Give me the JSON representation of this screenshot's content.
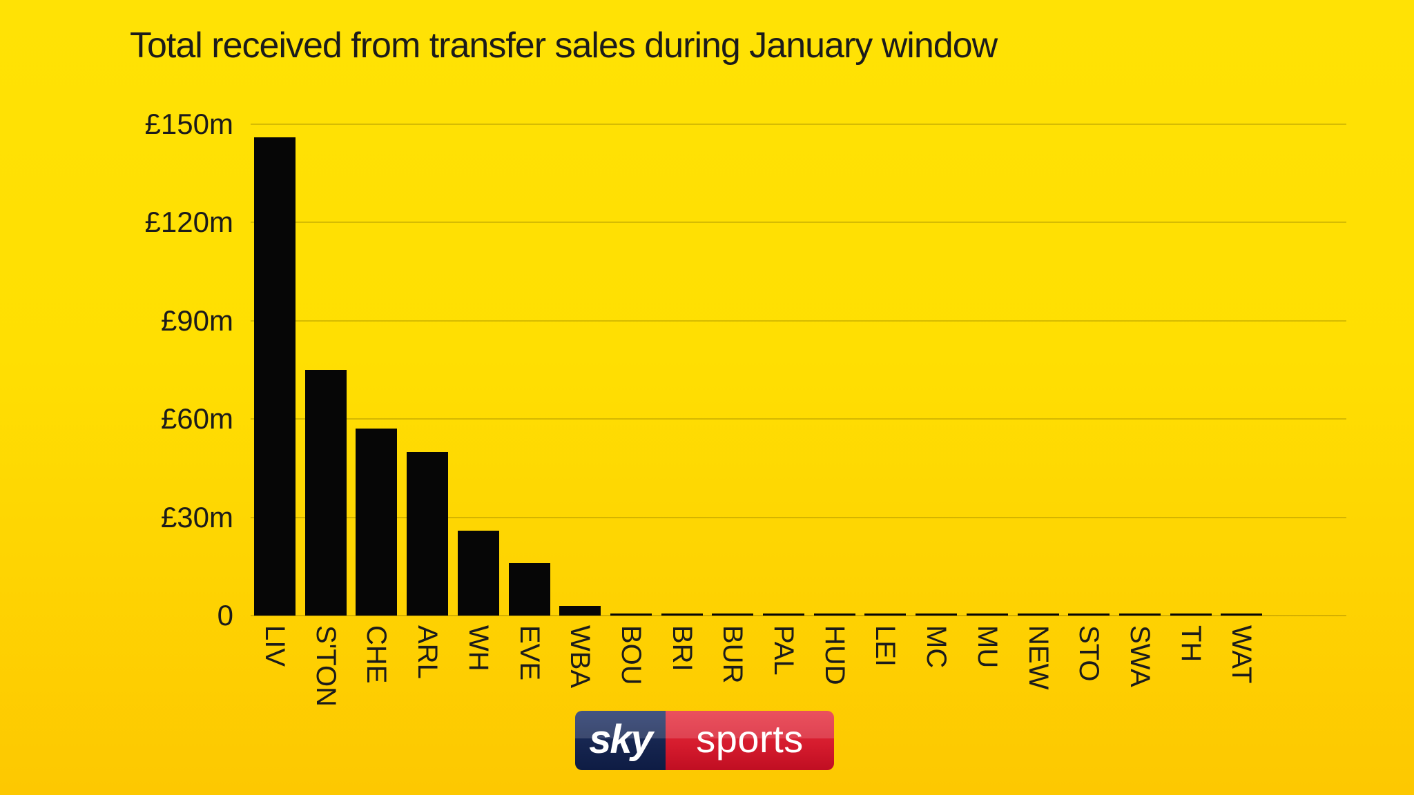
{
  "title": "Total received from transfer sales during January window",
  "branding": {
    "sky": "sky",
    "sports": "sports"
  },
  "colors": {
    "background_top": "#ffe205",
    "background_bottom": "#fdc801",
    "bar": "#060606",
    "grid": "rgba(0,0,0,0.16)",
    "text": "#1b1b1b",
    "logo_navy": "#16254f",
    "logo_red": "#d61c2e",
    "logo_text": "#ffffff"
  },
  "chart_data": {
    "type": "bar",
    "title": "Total received from transfer sales during January window",
    "unit": "£m",
    "categories": [
      "LIV",
      "S'TON",
      "CHE",
      "ARL",
      "WH",
      "EVE",
      "WBA",
      "BOU",
      "BRI",
      "BUR",
      "PAL",
      "HUD",
      "LEI",
      "MC",
      "MU",
      "NEW",
      "STO",
      "SWA",
      "TH",
      "WAT"
    ],
    "values": [
      146,
      75,
      57,
      50,
      26,
      16,
      3,
      0,
      0,
      0,
      0,
      0,
      0,
      0,
      0,
      0,
      0,
      0,
      0,
      0
    ],
    "xlabel": "",
    "ylabel": "",
    "y_ticks": [
      "£150m",
      "£120m",
      "£90m",
      "£60m",
      "£30m",
      "0"
    ],
    "y_tick_values": [
      150,
      120,
      90,
      60,
      30,
      0
    ],
    "ylim": [
      0,
      150
    ],
    "grid": true,
    "legend": false,
    "bar_color": "#060606",
    "source_brand": "Sky Sports"
  }
}
